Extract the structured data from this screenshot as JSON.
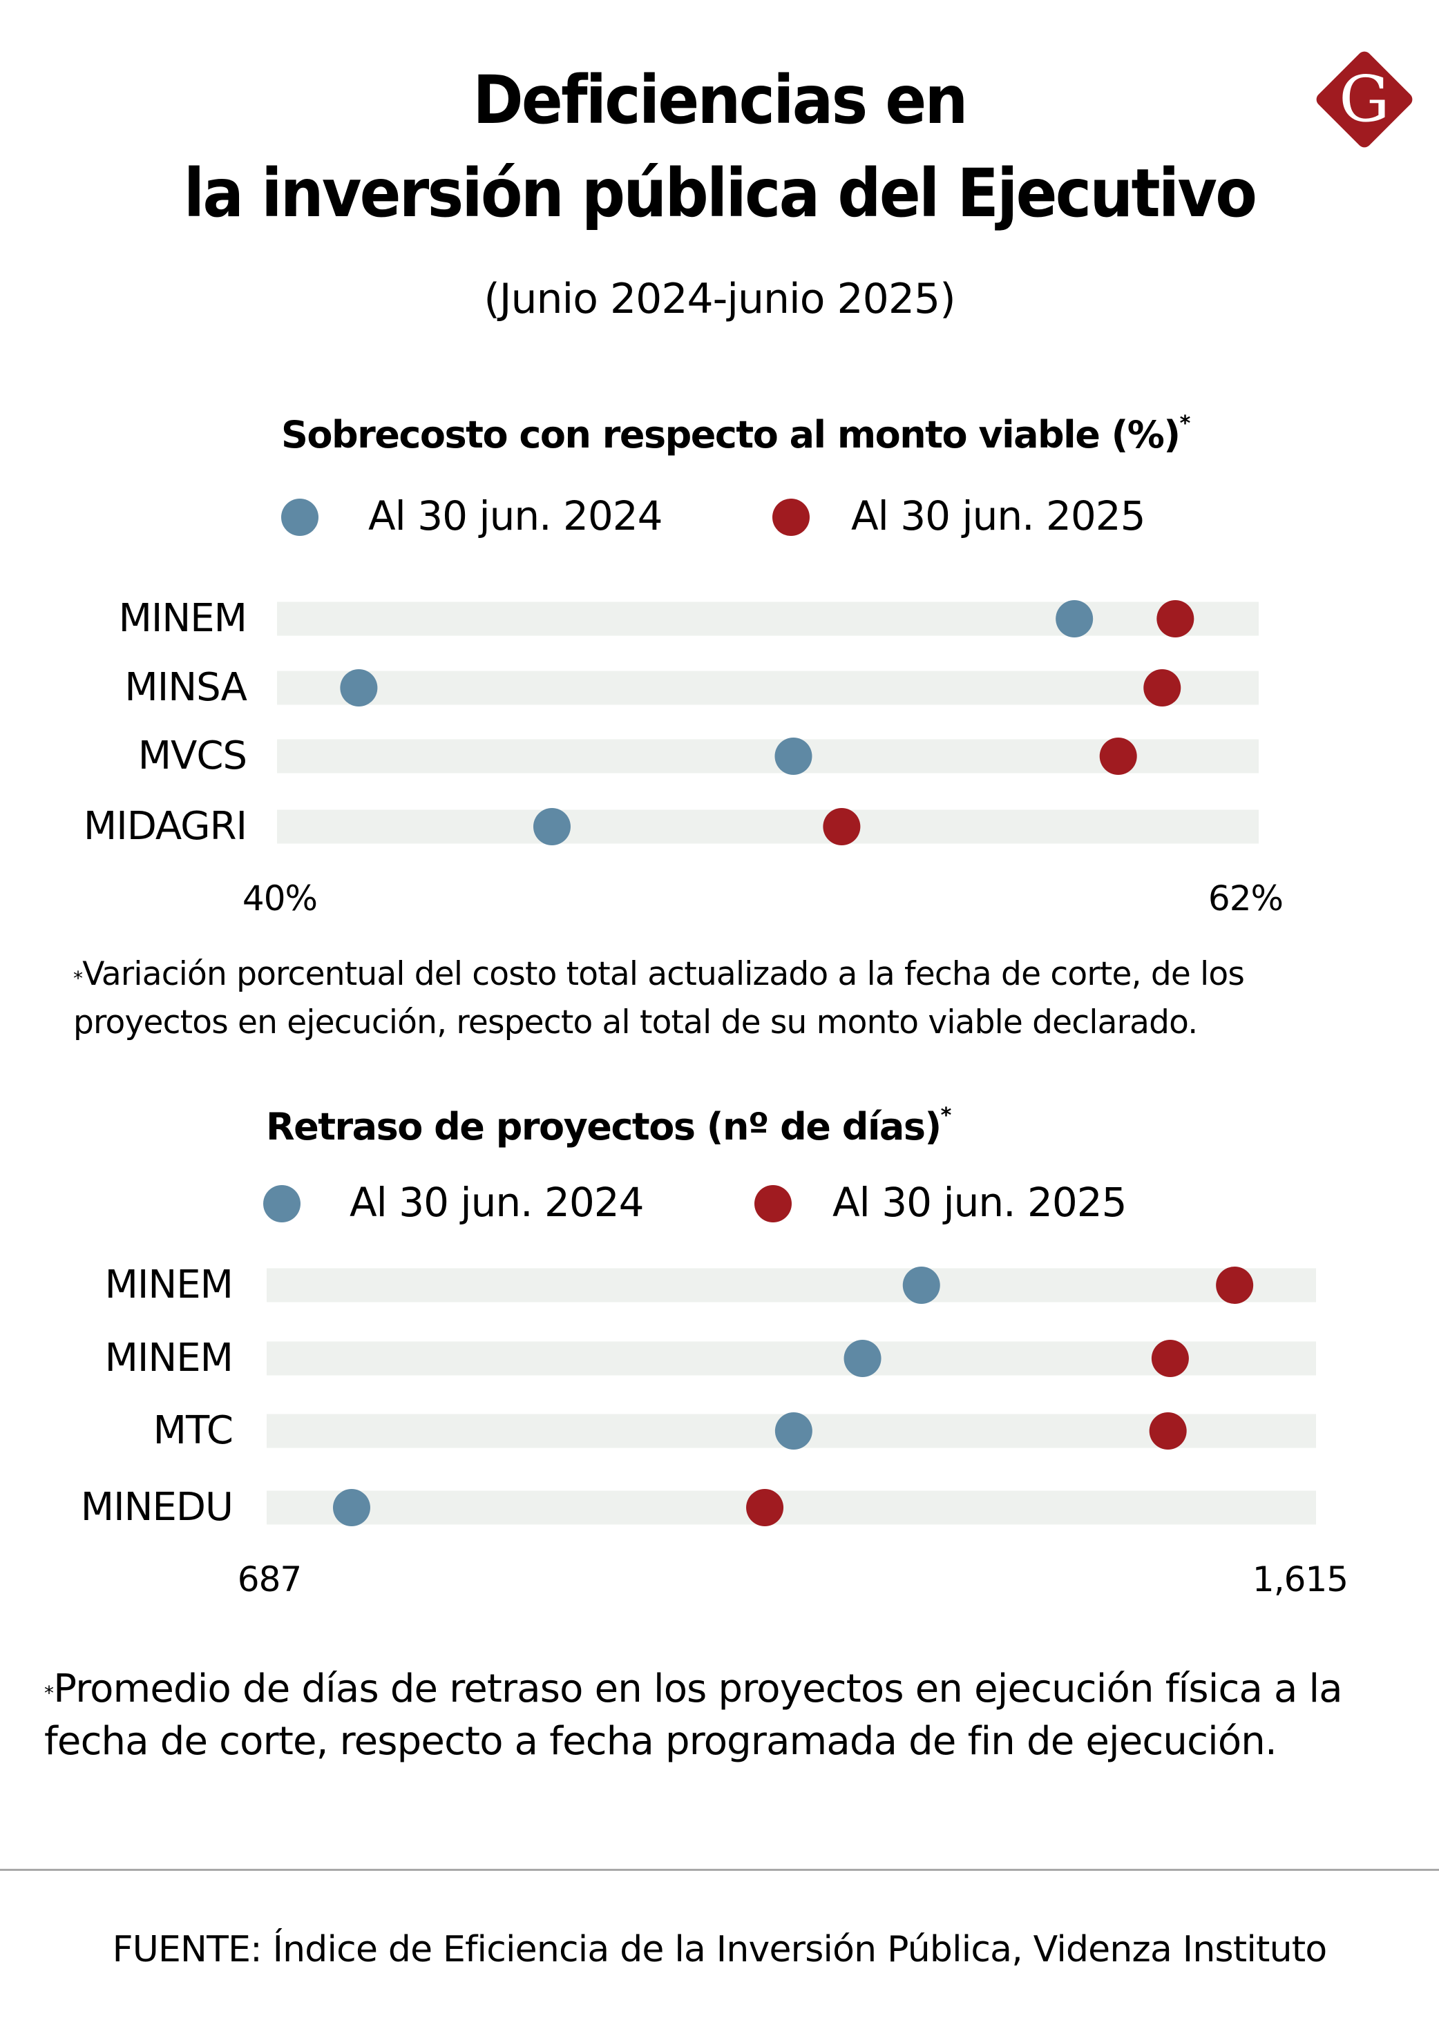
{
  "header": {
    "title_line1": "Deficiencias en",
    "title_line2": "la inversión pública del Ejecutivo",
    "subtitle": "(Junio 2024-junio 2025)",
    "logo_letter": "G",
    "logo_icon": "diamond-g-logo-icon"
  },
  "colors": {
    "series_2024": "#5f89a4",
    "series_2025": "#a01b20",
    "track": "#eef1ee",
    "logo": "#a01b20",
    "divider": "#a8a8a8"
  },
  "chart_data": [
    {
      "type": "dot-plot",
      "title": "Sobrecosto con respecto al monto viable (%)",
      "title_marker": "*",
      "legend": [
        "Al 30 jun. 2024",
        "Al 30 jun. 2025"
      ],
      "legend_placement": "top",
      "categories": [
        "MINEM",
        "MINSA",
        "MVCS",
        "MIDAGRI"
      ],
      "series": [
        {
          "name": "Al 30 jun. 2024",
          "values": [
            58.1,
            41.8,
            51.7,
            46.2
          ]
        },
        {
          "name": "Al 30 jun. 2025",
          "values": [
            60.4,
            60.1,
            59.1,
            52.8
          ]
        }
      ],
      "xlim": [
        40,
        62
      ],
      "tick_labels": [
        "40%",
        "62%"
      ],
      "xlabel": "",
      "ylabel": "",
      "grid": false,
      "footnote_marker": "*",
      "footnote_line1": "Variación porcentual del costo total actualizado a la fecha de corte, de los",
      "footnote_line2": "proyectos en ejecución, respecto al total de su monto viable declarado."
    },
    {
      "type": "dot-plot",
      "title": "Retraso de proyectos (nº de días)",
      "title_marker": "*",
      "legend": [
        "Al 30 jun. 2024",
        "Al 30 jun. 2025"
      ],
      "legend_placement": "top",
      "categories": [
        "MINEM",
        "MINEM",
        "MTC",
        "MINEDU"
      ],
      "series": [
        {
          "name": "Al 30 jun. 2024",
          "values": [
            1274,
            1221,
            1159,
            761
          ]
        },
        {
          "name": "Al 30 jun. 2025",
          "values": [
            1556,
            1498,
            1496,
            1133
          ]
        }
      ],
      "xlim": [
        687,
        1615
      ],
      "tick_labels": [
        "687",
        "1,615"
      ],
      "xlabel": "",
      "ylabel": "",
      "grid": false,
      "footnote_marker": "*",
      "footnote_line1": "Promedio de días de retraso en los proyectos en ejecución física a la",
      "footnote_line2": "fecha de corte, respecto a fecha programada de fin de ejecución."
    }
  ],
  "source": "FUENTE: Índice de Eficiencia de la Inversión Pública, Videnza Instituto"
}
